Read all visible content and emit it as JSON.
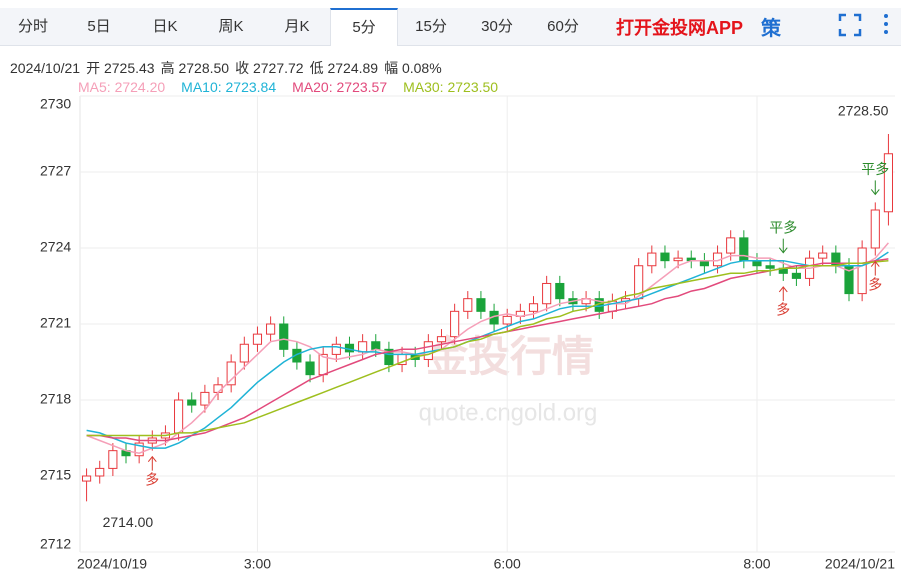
{
  "tabs": [
    "分时",
    "5日",
    "日K",
    "周K",
    "月K",
    "5分",
    "15分",
    "30分",
    "60分"
  ],
  "active_tab": "5分",
  "brand": "打开金投网APP",
  "strategy_icon": "策",
  "info": [
    "2024/10/21",
    "开 2725.43",
    "高 2728.50",
    "收 2727.72",
    "低 2724.89",
    "幅 0.08%"
  ],
  "watermark": [
    "金投行情",
    "quote.cngold.org"
  ],
  "chart_data": {
    "type": "candlestick",
    "categories": [
      "2024/10/19",
      null,
      null,
      null,
      null,
      null,
      null,
      null,
      null,
      null,
      null,
      null,
      null,
      "3:00",
      null,
      null,
      null,
      null,
      null,
      null,
      null,
      null,
      null,
      null,
      null,
      null,
      null,
      null,
      null,
      null,
      null,
      null,
      "6:00",
      null,
      null,
      null,
      null,
      null,
      null,
      null,
      null,
      null,
      null,
      null,
      null,
      null,
      null,
      null,
      null,
      null,
      null,
      "8:00",
      null,
      null,
      null,
      null,
      null,
      null,
      null,
      null,
      null,
      "2024/10/21"
    ],
    "open": [
      2714.8,
      2715.0,
      2715.3,
      2716.0,
      2715.8,
      2716.3,
      2716.5,
      2716.7,
      2718.0,
      2717.8,
      2718.3,
      2718.6,
      2719.5,
      2720.2,
      2720.6,
      2721.0,
      2720.0,
      2719.5,
      2719.0,
      2719.8,
      2720.2,
      2719.9,
      2720.3,
      2720.0,
      2719.4,
      2719.8,
      2719.6,
      2720.3,
      2720.5,
      2721.5,
      2722.0,
      2721.5,
      2721.0,
      2721.3,
      2721.5,
      2721.8,
      2722.6,
      2722.0,
      2721.8,
      2722.0,
      2721.5,
      2721.9,
      2722.0,
      2723.3,
      2723.8,
      2723.5,
      2723.6,
      2723.5,
      2723.3,
      2723.8,
      2724.4,
      2723.5,
      2723.3,
      2723.2,
      2723.0,
      2722.8,
      2723.6,
      2723.8,
      2723.3,
      2722.2,
      2724.0,
      2725.43
    ],
    "high": [
      2715.3,
      2715.6,
      2716.3,
      2716.3,
      2716.6,
      2716.8,
      2717.0,
      2718.3,
      2718.3,
      2718.6,
      2718.9,
      2719.8,
      2720.5,
      2720.9,
      2721.3,
      2721.3,
      2720.3,
      2719.8,
      2720.1,
      2720.5,
      2720.5,
      2720.6,
      2720.6,
      2720.3,
      2720.1,
      2720.1,
      2720.6,
      2720.8,
      2721.8,
      2722.3,
      2722.3,
      2721.8,
      2721.6,
      2721.8,
      2722.1,
      2722.9,
      2722.9,
      2722.3,
      2722.3,
      2722.3,
      2722.2,
      2722.3,
      2723.6,
      2724.1,
      2724.1,
      2723.9,
      2723.9,
      2723.8,
      2724.1,
      2724.7,
      2724.7,
      2723.8,
      2723.6,
      2723.5,
      2723.3,
      2723.9,
      2724.1,
      2724.1,
      2723.6,
      2724.3,
      2725.8,
      2728.5
    ],
    "low": [
      2714.0,
      2714.7,
      2715.0,
      2715.5,
      2715.5,
      2716.0,
      2716.2,
      2716.4,
      2717.5,
      2717.5,
      2718.0,
      2718.3,
      2719.2,
      2719.9,
      2720.3,
      2719.7,
      2719.2,
      2718.7,
      2718.7,
      2719.5,
      2719.6,
      2719.6,
      2719.7,
      2719.1,
      2719.1,
      2719.3,
      2719.3,
      2720.0,
      2720.2,
      2721.2,
      2721.2,
      2720.7,
      2720.7,
      2721.0,
      2721.2,
      2721.5,
      2721.7,
      2721.5,
      2721.5,
      2721.2,
      2721.2,
      2721.6,
      2721.7,
      2723.0,
      2723.2,
      2723.2,
      2723.2,
      2723.0,
      2723.0,
      2723.5,
      2723.2,
      2723.0,
      2722.9,
      2722.7,
      2722.5,
      2722.5,
      2723.3,
      2723.0,
      2721.9,
      2721.9,
      2723.7,
      2724.89
    ],
    "close": [
      2715.0,
      2715.3,
      2716.0,
      2715.8,
      2716.3,
      2716.5,
      2716.7,
      2718.0,
      2717.8,
      2718.3,
      2718.6,
      2719.5,
      2720.2,
      2720.6,
      2721.0,
      2720.0,
      2719.5,
      2719.0,
      2719.8,
      2720.2,
      2719.9,
      2720.3,
      2720.0,
      2719.4,
      2719.8,
      2719.6,
      2720.3,
      2720.5,
      2721.5,
      2722.0,
      2721.5,
      2721.0,
      2721.3,
      2721.5,
      2721.8,
      2722.6,
      2722.0,
      2721.8,
      2722.0,
      2721.5,
      2721.9,
      2722.0,
      2723.3,
      2723.8,
      2723.5,
      2723.6,
      2723.5,
      2723.3,
      2723.8,
      2724.4,
      2723.5,
      2723.3,
      2723.2,
      2723.0,
      2722.8,
      2723.6,
      2723.8,
      2723.3,
      2722.2,
      2724.0,
      2725.5,
      2727.72
    ],
    "up_color": "#e8383d",
    "down_color": "#1aa33a",
    "series": [
      {
        "name": "MA5",
        "legend_label": "MA5: 2724.20",
        "color": "#f59fb8",
        "values": [
          2716.6,
          2716.4,
          2716.2,
          2716.0,
          2715.9,
          2716.1,
          2716.3,
          2716.7,
          2717.1,
          2717.6,
          2718.3,
          2718.8,
          2719.3,
          2719.8,
          2720.3,
          2720.4,
          2720.3,
          2720.1,
          2719.7,
          2719.6,
          2719.7,
          2719.8,
          2720.0,
          2719.9,
          2719.9,
          2719.8,
          2719.8,
          2720.0,
          2720.4,
          2720.8,
          2721.1,
          2721.3,
          2721.4,
          2721.3,
          2721.4,
          2721.6,
          2721.8,
          2721.9,
          2722.0,
          2721.9,
          2721.8,
          2721.8,
          2722.1,
          2722.5,
          2722.9,
          2723.3,
          2723.5,
          2723.5,
          2723.5,
          2723.7,
          2723.7,
          2723.6,
          2723.6,
          2723.4,
          2723.2,
          2723.2,
          2723.3,
          2723.3,
          2723.1,
          2723.3,
          2723.6,
          2724.2
        ]
      },
      {
        "name": "MA10",
        "legend_label": "MA10: 2723.84",
        "color": "#1fb3d6",
        "values": [
          2716.8,
          2716.7,
          2716.5,
          2716.3,
          2716.2,
          2716.1,
          2716.1,
          2716.3,
          2716.6,
          2716.9,
          2717.3,
          2717.7,
          2718.2,
          2718.7,
          2719.1,
          2719.5,
          2719.8,
          2720.0,
          2720.1,
          2720.1,
          2720.0,
          2719.9,
          2719.9,
          2719.8,
          2719.8,
          2719.8,
          2719.9,
          2720.0,
          2720.1,
          2720.3,
          2720.5,
          2720.7,
          2720.9,
          2721.1,
          2721.2,
          2721.4,
          2721.6,
          2721.7,
          2721.7,
          2721.7,
          2721.8,
          2721.9,
          2722.0,
          2722.2,
          2722.4,
          2722.6,
          2722.8,
          2723.0,
          2723.2,
          2723.4,
          2723.5,
          2723.5,
          2723.5,
          2723.5,
          2723.4,
          2723.3,
          2723.3,
          2723.3,
          2723.3,
          2723.3,
          2723.5,
          2723.84
        ]
      },
      {
        "name": "MA20",
        "legend_label": "MA20: 2723.57",
        "color": "#e24a7c",
        "values": [
          2716.6,
          2716.6,
          2716.5,
          2716.5,
          2716.4,
          2716.4,
          2716.4,
          2716.5,
          2716.6,
          2716.7,
          2716.9,
          2717.1,
          2717.3,
          2717.6,
          2717.9,
          2718.2,
          2718.5,
          2718.8,
          2719.0,
          2719.2,
          2719.4,
          2719.6,
          2719.8,
          2719.9,
          2720.0,
          2720.0,
          2720.1,
          2720.2,
          2720.3,
          2720.4,
          2720.5,
          2720.6,
          2720.7,
          2720.8,
          2720.9,
          2721.0,
          2721.1,
          2721.2,
          2721.3,
          2721.4,
          2721.5,
          2721.6,
          2721.7,
          2721.8,
          2722.0,
          2722.1,
          2722.3,
          2722.4,
          2722.6,
          2722.8,
          2722.9,
          2723.0,
          2723.1,
          2723.2,
          2723.3,
          2723.3,
          2723.4,
          2723.4,
          2723.4,
          2723.4,
          2723.5,
          2723.57
        ]
      },
      {
        "name": "MA30",
        "legend_label": "MA30: 2723.50",
        "color": "#9ebf1e",
        "values": [
          2716.6,
          2716.6,
          2716.6,
          2716.6,
          2716.6,
          2716.6,
          2716.6,
          2716.7,
          2716.7,
          2716.8,
          2716.9,
          2717.0,
          2717.1,
          2717.3,
          2717.5,
          2717.7,
          2717.9,
          2718.1,
          2718.3,
          2718.5,
          2718.7,
          2718.9,
          2719.1,
          2719.3,
          2719.5,
          2719.7,
          2719.8,
          2720.0,
          2720.1,
          2720.3,
          2720.4,
          2720.6,
          2720.7,
          2720.9,
          2721.0,
          2721.2,
          2721.3,
          2721.5,
          2721.6,
          2721.8,
          2721.9,
          2722.1,
          2722.2,
          2722.4,
          2722.5,
          2722.6,
          2722.7,
          2722.8,
          2722.9,
          2723.0,
          2723.0,
          2723.1,
          2723.1,
          2723.2,
          2723.2,
          2723.3,
          2723.3,
          2723.3,
          2723.4,
          2723.4,
          2723.45,
          2723.5
        ]
      }
    ],
    "annotations": [
      {
        "label": "2714.00",
        "value": 2714.0
      },
      {
        "label": "2728.50",
        "value": 2728.5
      }
    ],
    "signals": [
      {
        "text": "多",
        "candle": 5,
        "side": "below"
      },
      {
        "text": "平多",
        "candle": 53,
        "side": "above"
      },
      {
        "text": "多",
        "candle": 53,
        "side": "below"
      },
      {
        "text": "平多",
        "candle": 60,
        "side": "above"
      },
      {
        "text": "多",
        "candle": 60,
        "side": "below"
      }
    ],
    "ylim": [
      2712,
      2730
    ],
    "yticks": [
      2712,
      2715,
      2718,
      2721,
      2724,
      2727,
      2730
    ],
    "grid": true
  }
}
